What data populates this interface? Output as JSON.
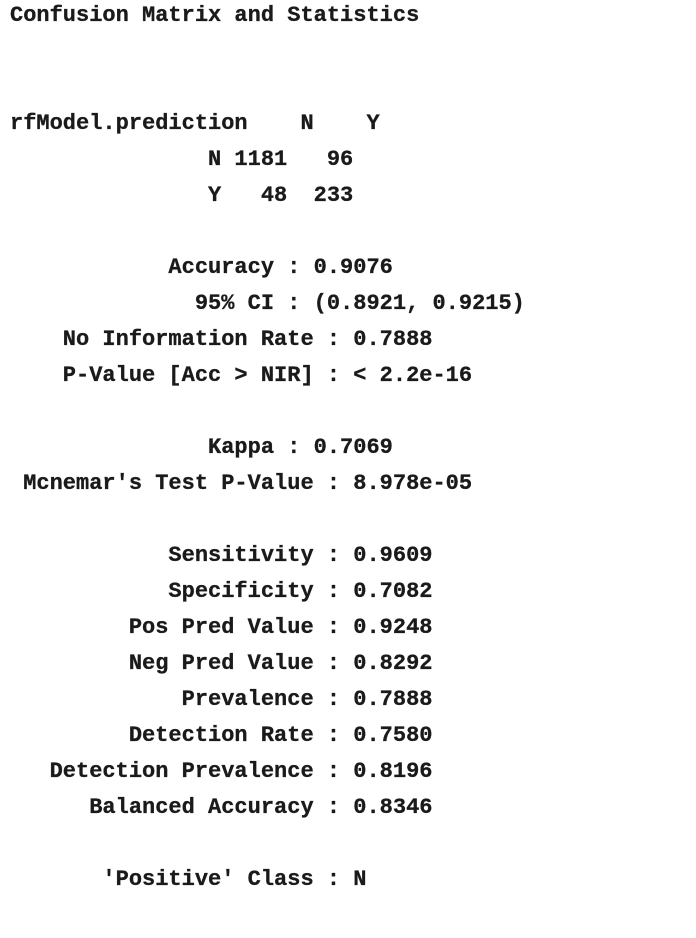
{
  "title": "Confusion Matrix and Statistics",
  "matrix": {
    "header": "rfModel.prediction    N    Y",
    "row_n": "               N 1181   96",
    "row_y": "               Y   48  233"
  },
  "stats": {
    "accuracy": "            Accuracy : 0.9076",
    "ci": "              95% CI : (0.8921, 0.9215)",
    "nir": "    No Information Rate : 0.7888",
    "pvalue": "    P-Value [Acc > NIR] : < 2.2e-16",
    "kappa": "               Kappa : 0.7069",
    "mcnemar": " Mcnemar's Test P-Value : 8.978e-05",
    "sensitivity": "            Sensitivity : 0.9609",
    "specificity": "            Specificity : 0.7082",
    "ppv": "         Pos Pred Value : 0.9248",
    "npv": "         Neg Pred Value : 0.8292",
    "prevalence": "             Prevalence : 0.7888",
    "detection_rate": "         Detection Rate : 0.7580",
    "detection_prevalence": "   Detection Prevalence : 0.8196",
    "balanced_accuracy": "      Balanced Accuracy : 0.8346",
    "positive_class": "       'Positive' Class : N"
  }
}
